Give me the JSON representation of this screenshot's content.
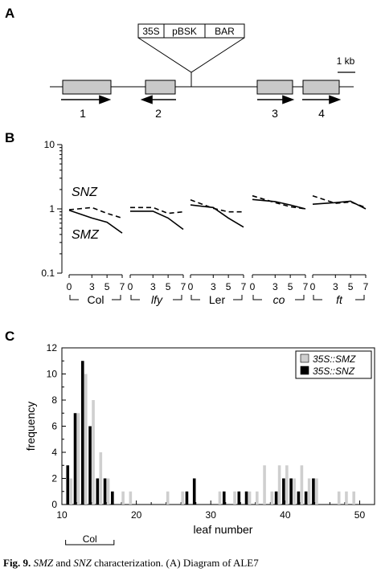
{
  "panel_a": {
    "label": "A",
    "construct": [
      "35S",
      "pBSK",
      "BAR"
    ],
    "scale_label": "1 kb",
    "exon_numbers": [
      "1",
      "2",
      "3",
      "4"
    ]
  },
  "chart_data": [
    {
      "type": "line",
      "panel": "B",
      "ylog": true,
      "ylim": [
        0.1,
        10
      ],
      "yticks": [
        "10",
        "1",
        "0.1"
      ],
      "x_ticks": [
        "0",
        "3",
        "5",
        "7"
      ],
      "groups": [
        {
          "name": "Col",
          "italic": false,
          "x": [
            0,
            3,
            5,
            7
          ],
          "series": [
            {
              "name": "SNZ",
              "style": "dashed",
              "values": [
                0.97,
                1.05,
                0.85,
                0.72
              ]
            },
            {
              "name": "SMZ",
              "style": "solid",
              "values": [
                0.95,
                0.72,
                0.62,
                0.42
              ]
            }
          ]
        },
        {
          "name": "lfy",
          "italic": true,
          "x": [
            0,
            3,
            5,
            7
          ],
          "series": [
            {
              "name": "SNZ",
              "style": "dashed",
              "values": [
                1.05,
                1.05,
                0.85,
                0.9
              ]
            },
            {
              "name": "SMZ",
              "style": "solid",
              "values": [
                0.92,
                0.92,
                0.72,
                0.48
              ]
            }
          ]
        },
        {
          "name": "Ler",
          "italic": false,
          "x": [
            0,
            3,
            5,
            7
          ],
          "series": [
            {
              "name": "SNZ",
              "style": "dashed",
              "values": [
                1.38,
                1.02,
                0.9,
                0.9
              ]
            },
            {
              "name": "SMZ",
              "style": "solid",
              "values": [
                1.15,
                1.05,
                0.72,
                0.52
              ]
            }
          ]
        },
        {
          "name": "co",
          "italic": true,
          "x": [
            0,
            3,
            5,
            7
          ],
          "series": [
            {
              "name": "SNZ",
              "style": "dashed",
              "values": [
                1.6,
                1.25,
                1.08,
                1.0
              ]
            },
            {
              "name": "SMZ",
              "style": "solid",
              "values": [
                1.4,
                1.3,
                1.15,
                1.0
              ]
            }
          ]
        },
        {
          "name": "ft",
          "italic": true,
          "x": [
            0,
            3,
            5,
            7
          ],
          "series": [
            {
              "name": "SNZ",
              "style": "dashed",
              "values": [
                1.6,
                1.22,
                1.28,
                1.05
              ]
            },
            {
              "name": "SMZ",
              "style": "solid",
              "values": [
                1.18,
                1.25,
                1.32,
                1.0
              ]
            }
          ]
        }
      ]
    },
    {
      "type": "bar",
      "panel": "C",
      "xlabel": "leaf number",
      "ylabel": "frequency",
      "xlim": [
        10,
        52
      ],
      "ylim": [
        0,
        12
      ],
      "xticks": [
        10,
        20,
        30,
        40,
        50
      ],
      "yticks": [
        0,
        2,
        4,
        6,
        8,
        10,
        12
      ],
      "bracket_label": "Col",
      "series": [
        {
          "name": "35S::SMZ",
          "color": "#cfcfcf",
          "x": [
            11,
            12,
            13,
            14,
            15,
            16,
            18,
            19,
            24,
            26,
            31,
            33,
            35,
            36,
            37,
            38,
            39,
            40,
            41,
            42,
            43,
            44,
            47,
            48,
            49
          ],
          "values": [
            2,
            7,
            10,
            8,
            4,
            2,
            1,
            1,
            1,
            1,
            1,
            1,
            1,
            1,
            3,
            1,
            3,
            3,
            2,
            3,
            2,
            2,
            1,
            1,
            1
          ]
        },
        {
          "name": "35S::SNZ",
          "color": "#000000",
          "x": [
            11,
            12,
            13,
            14,
            15,
            16,
            17,
            27,
            28,
            32,
            34,
            35,
            39,
            40,
            41,
            42,
            43,
            44
          ],
          "values": [
            3,
            7,
            11,
            6,
            2,
            2,
            1,
            1,
            2,
            1,
            1,
            1,
            1,
            2,
            2,
            1,
            1,
            2
          ]
        }
      ]
    }
  ],
  "labels": {
    "panel_b": "B",
    "panel_c": "C",
    "snz_label": "SNZ",
    "smz_label": "SMZ"
  },
  "caption": {
    "bold": "Fig. 9.",
    "i1": "SMZ",
    "t1": " and ",
    "i2": "SNZ",
    "t2": " characterization. (A) Diagram of ALE7"
  }
}
